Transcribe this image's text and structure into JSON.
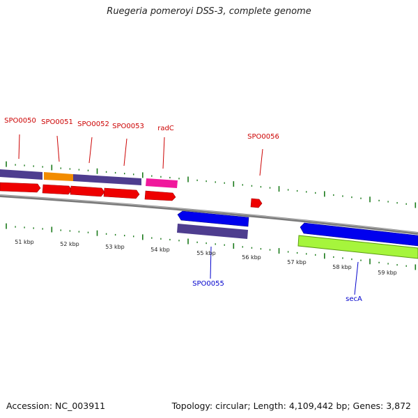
{
  "title": "Ruegeria pomeroyi DSS-3, complete genome",
  "footer": {
    "accession": "Accession: NC_003911",
    "stats": "Topology: circular; Length: 4,109,442 bp; Genes: 3,872"
  },
  "colors": {
    "forward_gene": "#ff0000",
    "reverse_gene": "#0000ff",
    "backbone": "#888888",
    "ticks": "#1a7a1a",
    "forward_label": "#cc0000",
    "reverse_label": "#0000cc"
  },
  "kbp_labels": [
    "51 kbp",
    "52 kbp",
    "53 kbp",
    "54 kbp",
    "55 kbp",
    "56 kbp",
    "57 kbp",
    "58 kbp",
    "59 kbp"
  ],
  "genes": [
    {
      "name": "SPO0050",
      "strand": "forward"
    },
    {
      "name": "SPO0051",
      "strand": "forward"
    },
    {
      "name": "SPO0052",
      "strand": "forward"
    },
    {
      "name": "SPO0053",
      "strand": "forward"
    },
    {
      "name": "radC",
      "strand": "forward"
    },
    {
      "name": "SPO0056",
      "strand": "forward"
    },
    {
      "name": "SPO0055",
      "strand": "reverse"
    },
    {
      "name": "secA",
      "strand": "reverse"
    }
  ]
}
